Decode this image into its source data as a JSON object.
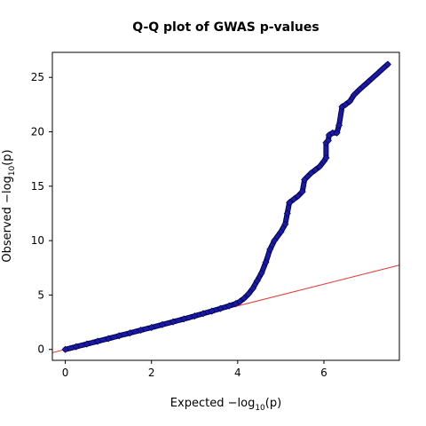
{
  "chart_data": {
    "type": "scatter",
    "title": "Q-Q plot of GWAS p-values",
    "xlabel": {
      "prefix": "Expected  ",
      "sign": "−",
      "log": "log",
      "sub": "10",
      "arg": "(p)"
    },
    "ylabel": {
      "prefix": "Observed  ",
      "sign": "−",
      "log": "log",
      "sub": "10",
      "arg": "(p)"
    },
    "xlim": [
      -0.3,
      7.75
    ],
    "ylim": [
      -1.0,
      27.3
    ],
    "xticks": [
      0,
      2,
      4,
      6
    ],
    "yticks": [
      0,
      5,
      10,
      15,
      20,
      25
    ],
    "grid": false,
    "reference_line": {
      "slope": 1,
      "intercept": 0,
      "color": "#e8332d"
    },
    "marker_color": "#1a1aa6",
    "series": [
      {
        "marker": "diamond",
        "points": [
          [
            0.0,
            0.0
          ],
          [
            0.25,
            0.25
          ],
          [
            0.5,
            0.5
          ],
          [
            0.75,
            0.75
          ],
          [
            1.0,
            1.0
          ],
          [
            1.25,
            1.26
          ],
          [
            1.5,
            1.51
          ],
          [
            1.75,
            1.77
          ],
          [
            2.0,
            2.02
          ],
          [
            2.25,
            2.28
          ],
          [
            2.5,
            2.54
          ],
          [
            2.75,
            2.8
          ],
          [
            3.0,
            3.07
          ],
          [
            3.2,
            3.3
          ],
          [
            3.4,
            3.52
          ],
          [
            3.6,
            3.76
          ],
          [
            3.8,
            4.0
          ],
          [
            3.95,
            4.2
          ],
          [
            4.05,
            4.4
          ],
          [
            4.15,
            4.7
          ],
          [
            4.25,
            5.1
          ],
          [
            4.35,
            5.6
          ],
          [
            4.45,
            6.3
          ],
          [
            4.55,
            7.0
          ],
          [
            4.65,
            8.0
          ],
          [
            4.75,
            9.2
          ],
          [
            4.85,
            10.0
          ],
          [
            5.0,
            10.8
          ],
          [
            5.1,
            11.5
          ],
          [
            5.15,
            12.5
          ],
          [
            5.2,
            13.5
          ],
          [
            5.3,
            13.8
          ],
          [
            5.4,
            14.1
          ],
          [
            5.5,
            14.5
          ],
          [
            5.55,
            15.6
          ],
          [
            5.7,
            16.2
          ],
          [
            5.8,
            16.5
          ],
          [
            5.9,
            16.8
          ],
          [
            6.0,
            17.3
          ],
          [
            6.05,
            17.6
          ],
          [
            6.05,
            19.0
          ],
          [
            6.1,
            19.2
          ],
          [
            6.12,
            19.7
          ],
          [
            6.2,
            19.9
          ],
          [
            6.3,
            19.9
          ],
          [
            6.35,
            20.6
          ],
          [
            6.42,
            22.3
          ],
          [
            6.5,
            22.5
          ],
          [
            6.6,
            22.8
          ],
          [
            6.7,
            23.4
          ],
          [
            6.83,
            23.9
          ],
          [
            7.03,
            24.6
          ],
          [
            7.48,
            26.2
          ]
        ]
      }
    ]
  }
}
